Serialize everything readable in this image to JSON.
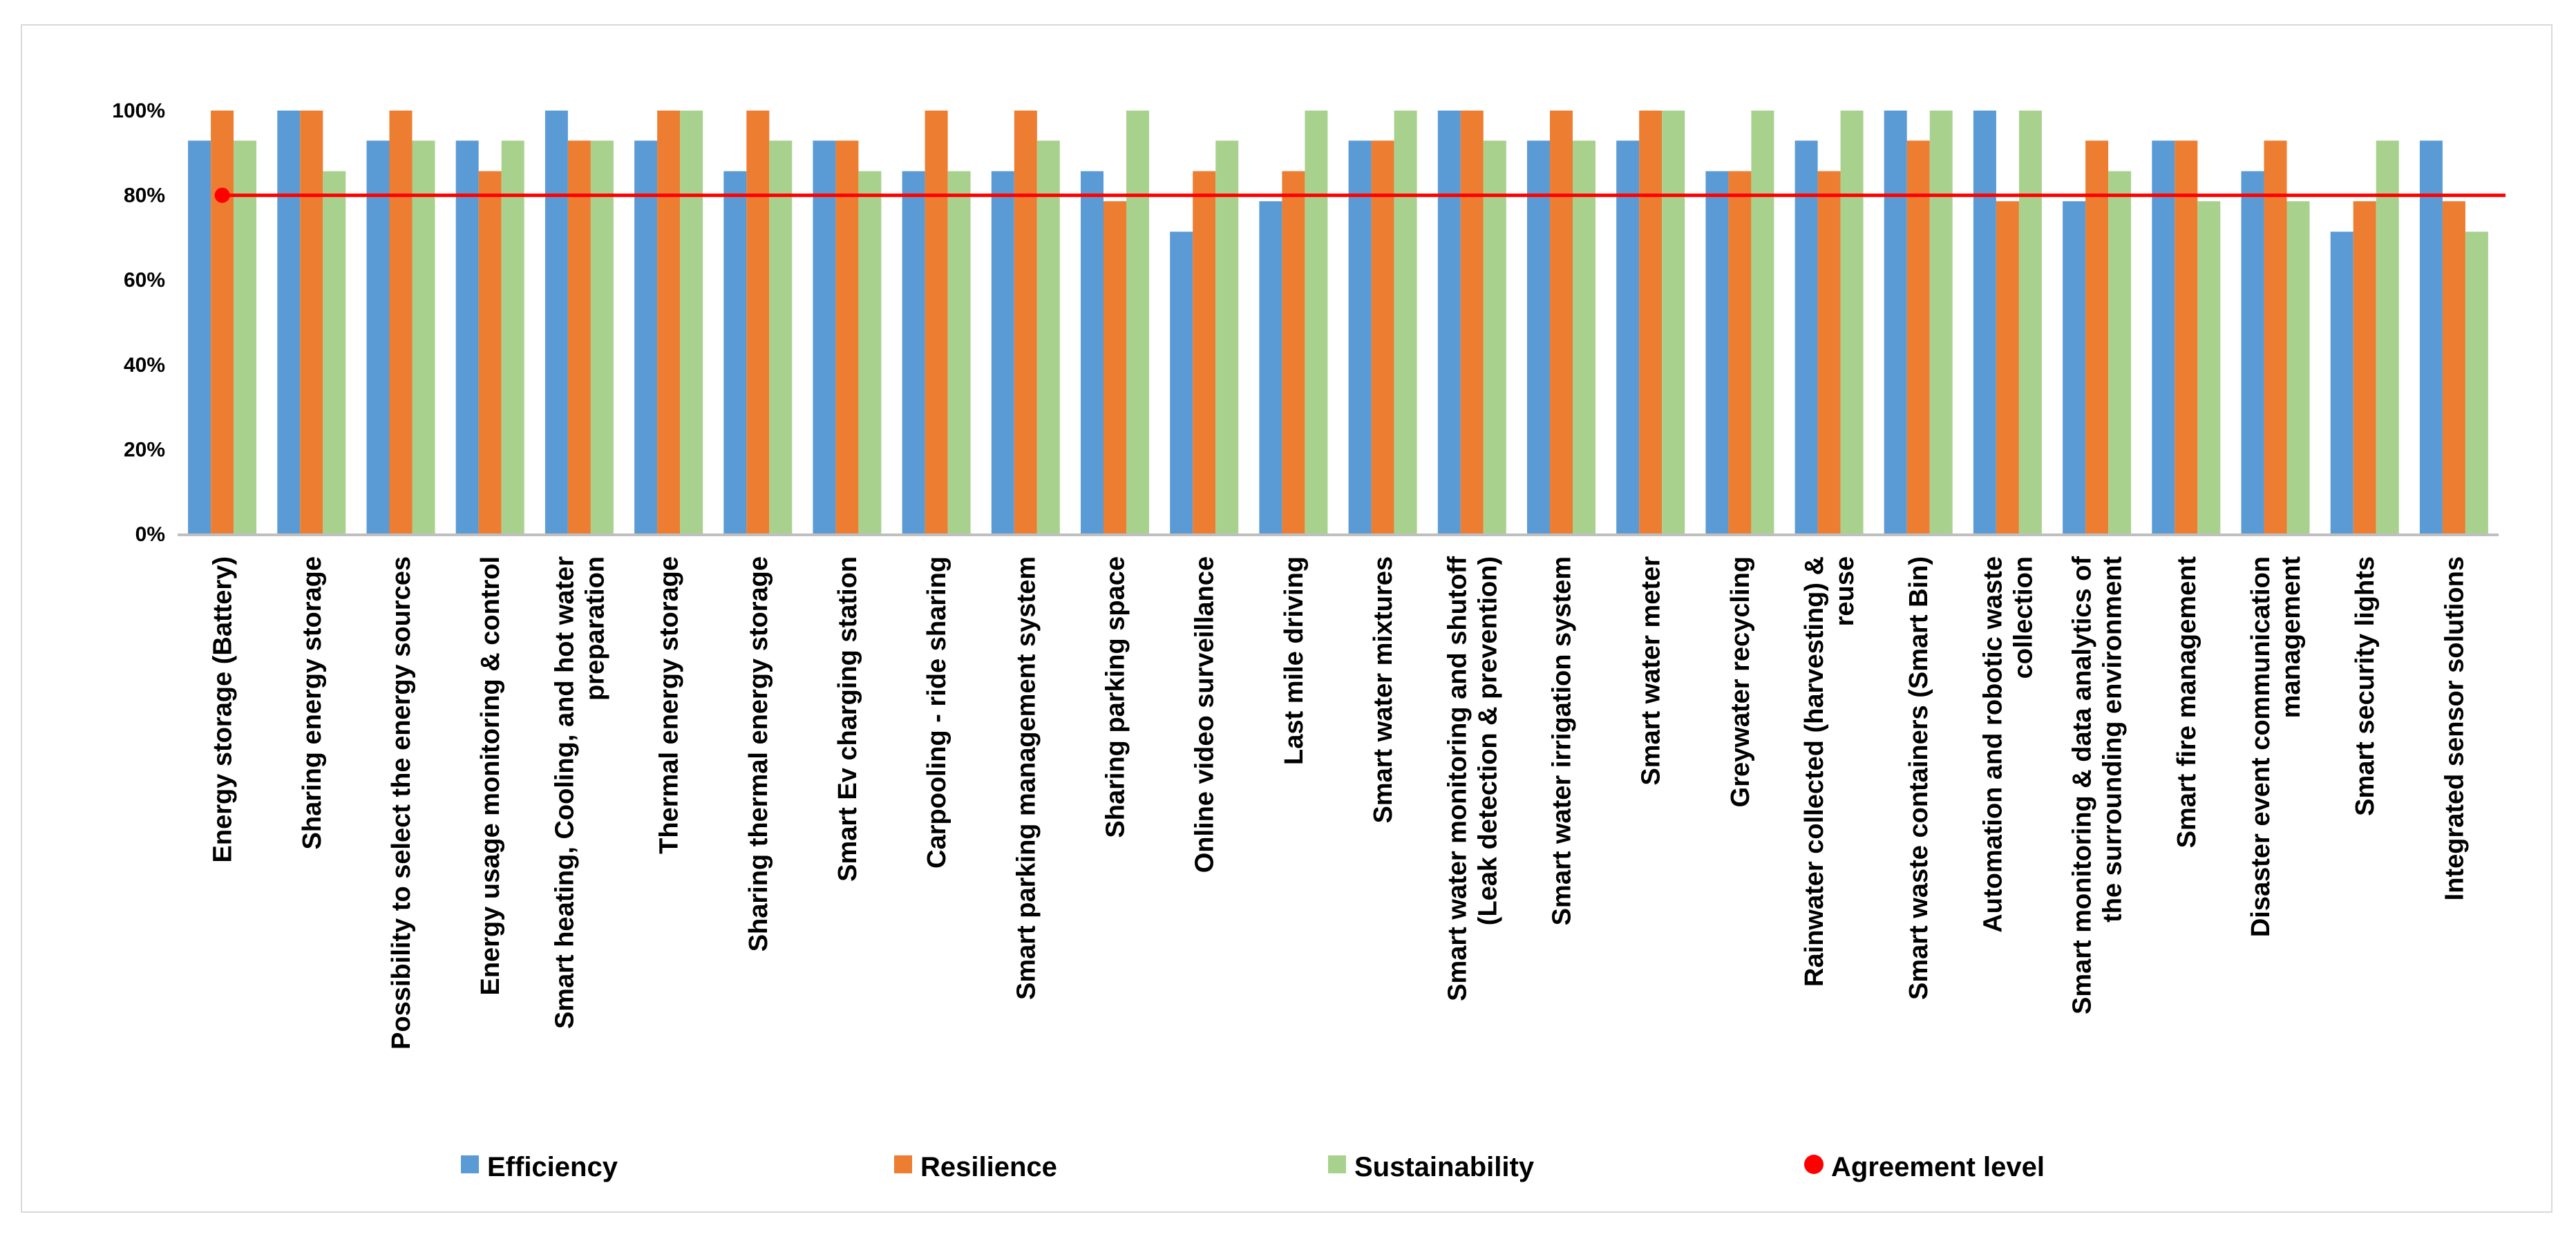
{
  "chart_data": {
    "type": "bar",
    "title": "",
    "xlabel": "",
    "ylabel": "",
    "ylim": [
      0,
      100
    ],
    "y_ticks": [
      "0%",
      "20%",
      "40%",
      "60%",
      "80%",
      "100%"
    ],
    "categories": [
      [
        "Energy storage (Battery)"
      ],
      [
        "Sharing energy storage"
      ],
      [
        "Possibility to select the energy sources"
      ],
      [
        "Energy usage monitoring & control"
      ],
      [
        "Smart heating, Cooling, and hot water",
        "preparation"
      ],
      [
        "Thermal energy storage"
      ],
      [
        "Sharing thermal energy storage"
      ],
      [
        "Smart Ev charging station"
      ],
      [
        "Carpooling - ride sharing"
      ],
      [
        "Smart parking management system"
      ],
      [
        "Sharing parking space"
      ],
      [
        "Online video surveillance"
      ],
      [
        "Last mile driving"
      ],
      [
        "Smart water mixtures"
      ],
      [
        "Smart water monitoring and shutoff",
        "(Leak detection & prevention)"
      ],
      [
        "Smart water irrigation system"
      ],
      [
        "Smart water meter"
      ],
      [
        "Greywater recycling"
      ],
      [
        "Rainwater collected (harvesting) &",
        "reuse"
      ],
      [
        "Smart waste containers (Smart Bin)"
      ],
      [
        "Automation and robotic waste",
        "collection"
      ],
      [
        "Smart monitoring & data analytics of",
        "the surrounding environment"
      ],
      [
        "Smart fire management"
      ],
      [
        "Disaster event communication",
        "management"
      ],
      [
        "Smart security lights"
      ],
      [
        "Integrated sensor solutions"
      ]
    ],
    "series": [
      {
        "name": "Efficiency",
        "color": "#5b9bd5",
        "values": [
          92.9,
          100,
          92.9,
          92.9,
          100,
          92.9,
          85.7,
          92.9,
          85.7,
          85.7,
          85.7,
          71.4,
          78.6,
          92.9,
          100,
          92.9,
          92.9,
          85.7,
          92.9,
          100,
          100,
          78.6,
          92.9,
          85.7,
          71.4,
          92.9
        ]
      },
      {
        "name": "Resilience",
        "color": "#ed7d31",
        "values": [
          100,
          100,
          100,
          85.7,
          92.9,
          100,
          100,
          92.9,
          100,
          100,
          78.6,
          85.7,
          85.7,
          92.9,
          100,
          100,
          100,
          85.7,
          85.7,
          92.9,
          78.6,
          92.9,
          92.9,
          92.9,
          78.6,
          78.6
        ]
      },
      {
        "name": "Sustainability",
        "color": "#a9d18e",
        "values": [
          92.9,
          85.7,
          92.9,
          92.9,
          92.9,
          100,
          92.9,
          85.7,
          85.7,
          92.9,
          100,
          92.9,
          100,
          100,
          92.9,
          92.9,
          100,
          100,
          100,
          100,
          100,
          85.7,
          78.6,
          78.6,
          92.9,
          71.4
        ]
      }
    ],
    "reference_line": {
      "name": "Agreement level",
      "value": 80,
      "color": "#ff0000",
      "marker_category_index": 0
    },
    "legend_position": "bottom",
    "grid": false
  }
}
